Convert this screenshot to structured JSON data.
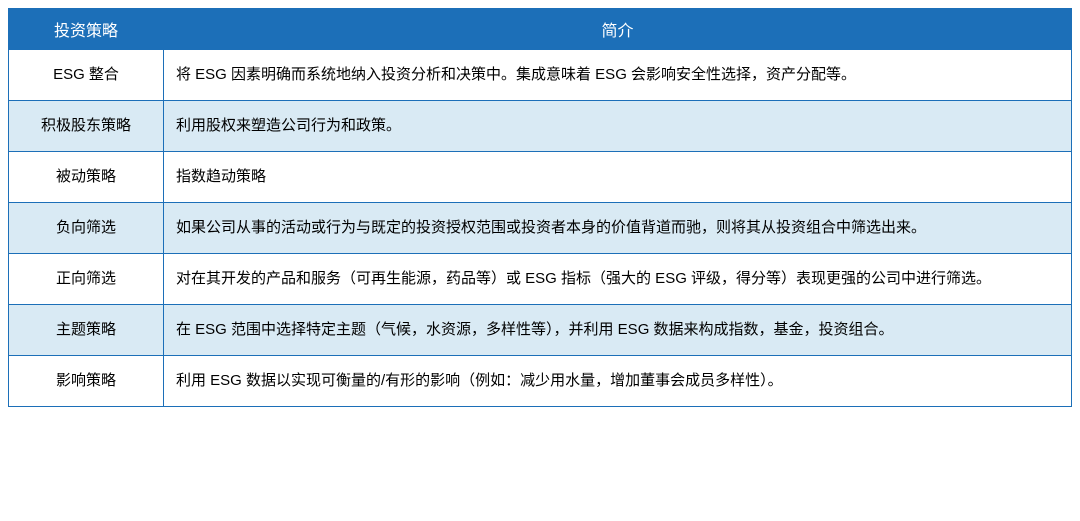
{
  "table": {
    "header_bg": "#1c6fb8",
    "header_text_color": "#ffffff",
    "border_color": "#1c6fb8",
    "alt_row_bg": "#d9eaf4",
    "row_bg": "#ffffff",
    "columns": [
      {
        "key": "strategy",
        "label": "投资策略",
        "width": 155
      },
      {
        "key": "desc",
        "label": "简介"
      }
    ],
    "rows": [
      {
        "alt": false,
        "strategy": "ESG 整合",
        "desc": "将 ESG 因素明确而系统地纳入投资分析和决策中。集成意味着 ESG 会影响安全性选择，资产分配等。"
      },
      {
        "alt": true,
        "strategy": "积极股东策略",
        "desc": "利用股权来塑造公司行为和政策。"
      },
      {
        "alt": false,
        "strategy": "被动策略",
        "desc": "指数趋动策略"
      },
      {
        "alt": true,
        "strategy": "负向筛选",
        "desc": "如果公司从事的活动或行为与既定的投资授权范围或投资者本身的价值背道而驰，则将其从投资组合中筛选出来。"
      },
      {
        "alt": false,
        "strategy": "正向筛选",
        "desc": "对在其开发的产品和服务（可再生能源，药品等）或 ESG 指标（强大的 ESG 评级，得分等）表现更强的公司中进行筛选。"
      },
      {
        "alt": true,
        "strategy": "主题策略",
        "desc": "在 ESG 范围中选择特定主题（气候，水资源，多样性等），并利用 ESG 数据来构成指数，基金，投资组合。"
      },
      {
        "alt": false,
        "strategy": "影响策略",
        "desc": "利用 ESG 数据以实现可衡量的/有形的影响（例如：减少用水量，增加董事会成员多样性）。"
      }
    ]
  }
}
